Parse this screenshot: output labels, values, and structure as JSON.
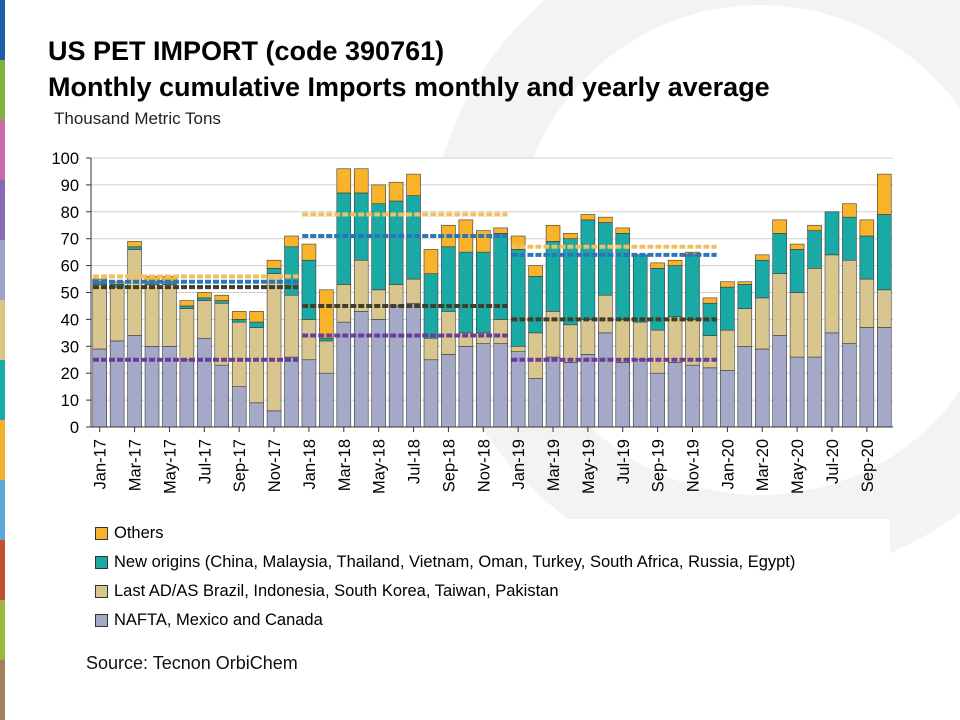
{
  "title": "US PET IMPORT (code 390761)",
  "subtitle": "Monthly cumulative Imports monthly and yearly average",
  "unit_label": "Thousand Metric Tons",
  "source": "Source: Tecnon OrbiChem",
  "colors": {
    "nafta": "#a3a9c6",
    "last_ad": "#d9c68e",
    "new_origins": "#1aaaa6",
    "others": "#f8b32a",
    "avg_nafta": "#6a3d9a",
    "avg_last_ad": "#3f3f2c",
    "avg_new_origins": "#2e75b6",
    "avg_others": "#f0c060"
  },
  "legend": [
    {
      "key": "others",
      "label": "Others"
    },
    {
      "key": "new_origins",
      "label": "New origins (China, Malaysia, Thailand, Vietnam, Oman, Turkey, South Africa, Russia, Egypt)"
    },
    {
      "key": "last_ad",
      "label": "Last AD/AS Brazil, Indonesia, South Korea, Taiwan, Pakistan"
    },
    {
      "key": "nafta",
      "label": "NAFTA, Mexico and Canada"
    }
  ],
  "chart_data": {
    "type": "bar",
    "stacked": true,
    "title": "US PET IMPORT (code 390761)",
    "subtitle": "Monthly cumulative Imports monthly and yearly average",
    "ylabel": "Thousand Metric Tons",
    "ylim": [
      0,
      100
    ],
    "yticks": [
      0,
      10,
      20,
      30,
      40,
      50,
      60,
      70,
      80,
      90,
      100
    ],
    "tick_labels": [
      "Jan-17",
      "Mar-17",
      "May-17",
      "Jul-17",
      "Sep-17",
      "Nov-17",
      "Jan-18",
      "Mar-18",
      "May-18",
      "Jul-18",
      "Sep-18",
      "Nov-18",
      "Jan-19",
      "Mar-19",
      "May-19",
      "Jul-19",
      "Sep-19",
      "Nov-19",
      "Jan-20",
      "Mar-20",
      "May-20",
      "Jul-20",
      "Sep-20"
    ],
    "categories": [
      "Jan-17",
      "Feb-17",
      "Mar-17",
      "Apr-17",
      "May-17",
      "Jun-17",
      "Jul-17",
      "Aug-17",
      "Sep-17",
      "Oct-17",
      "Nov-17",
      "Dec-17",
      "Jan-18",
      "Feb-18",
      "Mar-18",
      "Apr-18",
      "May-18",
      "Jun-18",
      "Jul-18",
      "Aug-18",
      "Sep-18",
      "Oct-18",
      "Nov-18",
      "Dec-18",
      "Jan-19",
      "Feb-19",
      "Mar-19",
      "Apr-19",
      "May-19",
      "Jun-19",
      "Jul-19",
      "Aug-19",
      "Sep-19",
      "Oct-19",
      "Nov-19",
      "Dec-19",
      "Jan-20",
      "Feb-20",
      "Mar-20",
      "Apr-20",
      "May-20",
      "Jun-20",
      "Jul-20",
      "Aug-20",
      "Sep-20",
      "Oct-20"
    ],
    "series": [
      {
        "key": "nafta",
        "name": "NAFTA, Mexico and Canada",
        "values": [
          29,
          32,
          34,
          30,
          30,
          25,
          33,
          23,
          15,
          9,
          6,
          26,
          25,
          20,
          39,
          43,
          40,
          45,
          46,
          25,
          27,
          30,
          31,
          31,
          28,
          18,
          26,
          24,
          27,
          35,
          24,
          25,
          20,
          24,
          23,
          22,
          21,
          30,
          29,
          34,
          26,
          26,
          35,
          31,
          37,
          37
        ]
      },
      {
        "key": "last_ad",
        "name": "Last AD/AS Brazil, Indonesia, South Korea, Taiwan, Pakistan",
        "values": [
          24,
          20,
          32,
          23,
          23,
          19,
          14,
          23,
          24,
          28,
          51,
          23,
          15,
          12,
          14,
          19,
          11,
          8,
          9,
          8,
          16,
          5,
          4,
          9,
          2,
          17,
          17,
          14,
          13,
          14,
          16,
          14,
          16,
          17,
          17,
          12,
          15,
          14,
          19,
          23,
          24,
          33,
          29,
          31,
          18,
          14
        ]
      },
      {
        "key": "new_origins",
        "name": "New origins (China, Malaysia, Thailand, Vietnam, Oman, Turkey, South Africa, Russia, Egypt)",
        "values": [
          1,
          1,
          1,
          1,
          1,
          1,
          1,
          1,
          1,
          2,
          2,
          18,
          22,
          1,
          34,
          25,
          32,
          31,
          31,
          24,
          24,
          30,
          30,
          32,
          36,
          21,
          26,
          32,
          37,
          27,
          32,
          25,
          23,
          19,
          24,
          12,
          16,
          9,
          14,
          15,
          16,
          14,
          16,
          16,
          16,
          28
        ]
      },
      {
        "key": "others",
        "name": "Others",
        "values": [
          1,
          1,
          2,
          2,
          2,
          2,
          2,
          2,
          3,
          4,
          3,
          4,
          6,
          18,
          9,
          9,
          7,
          7,
          8,
          9,
          8,
          12,
          8,
          2,
          5,
          4,
          6,
          2,
          2,
          2,
          2,
          0,
          2,
          2,
          1,
          2,
          2,
          1,
          2,
          5,
          2,
          2,
          0,
          5,
          6,
          15
        ]
      }
    ],
    "yearly_averages": [
      {
        "year": "2017",
        "nafta": 25,
        "last_ad": 52,
        "new_origins": 54,
        "others": 56
      },
      {
        "year": "2018",
        "nafta": 34,
        "last_ad": 45,
        "new_origins": 71,
        "others": 79
      },
      {
        "year": "2019",
        "nafta": 25,
        "last_ad": 40,
        "new_origins": 64,
        "others": 67
      }
    ]
  }
}
